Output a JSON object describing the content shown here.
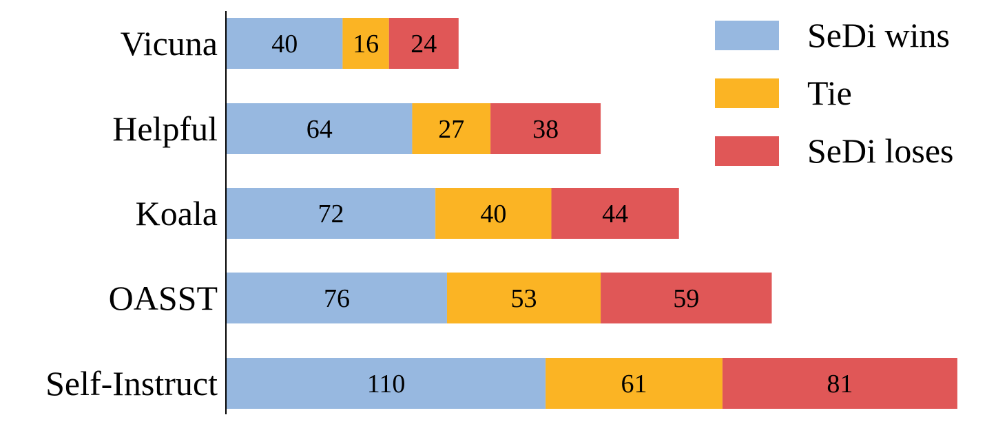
{
  "chart_data": {
    "type": "bar",
    "orientation": "horizontal",
    "stacked": true,
    "categories": [
      "Vicuna",
      "Helpful",
      "Koala",
      "OASST",
      "Self-Instruct"
    ],
    "series": [
      {
        "name": "SeDi wins",
        "color": "#97b8e0",
        "values": [
          40,
          64,
          72,
          76,
          110
        ]
      },
      {
        "name": "Tie",
        "color": "#fbb424",
        "values": [
          16,
          27,
          40,
          53,
          61
        ]
      },
      {
        "name": "SeDi loses",
        "color": "#e05757",
        "values": [
          24,
          38,
          44,
          59,
          81
        ]
      }
    ],
    "title": "",
    "xlabel": "",
    "ylabel": "",
    "legend_position": "top-right",
    "grid": false
  }
}
